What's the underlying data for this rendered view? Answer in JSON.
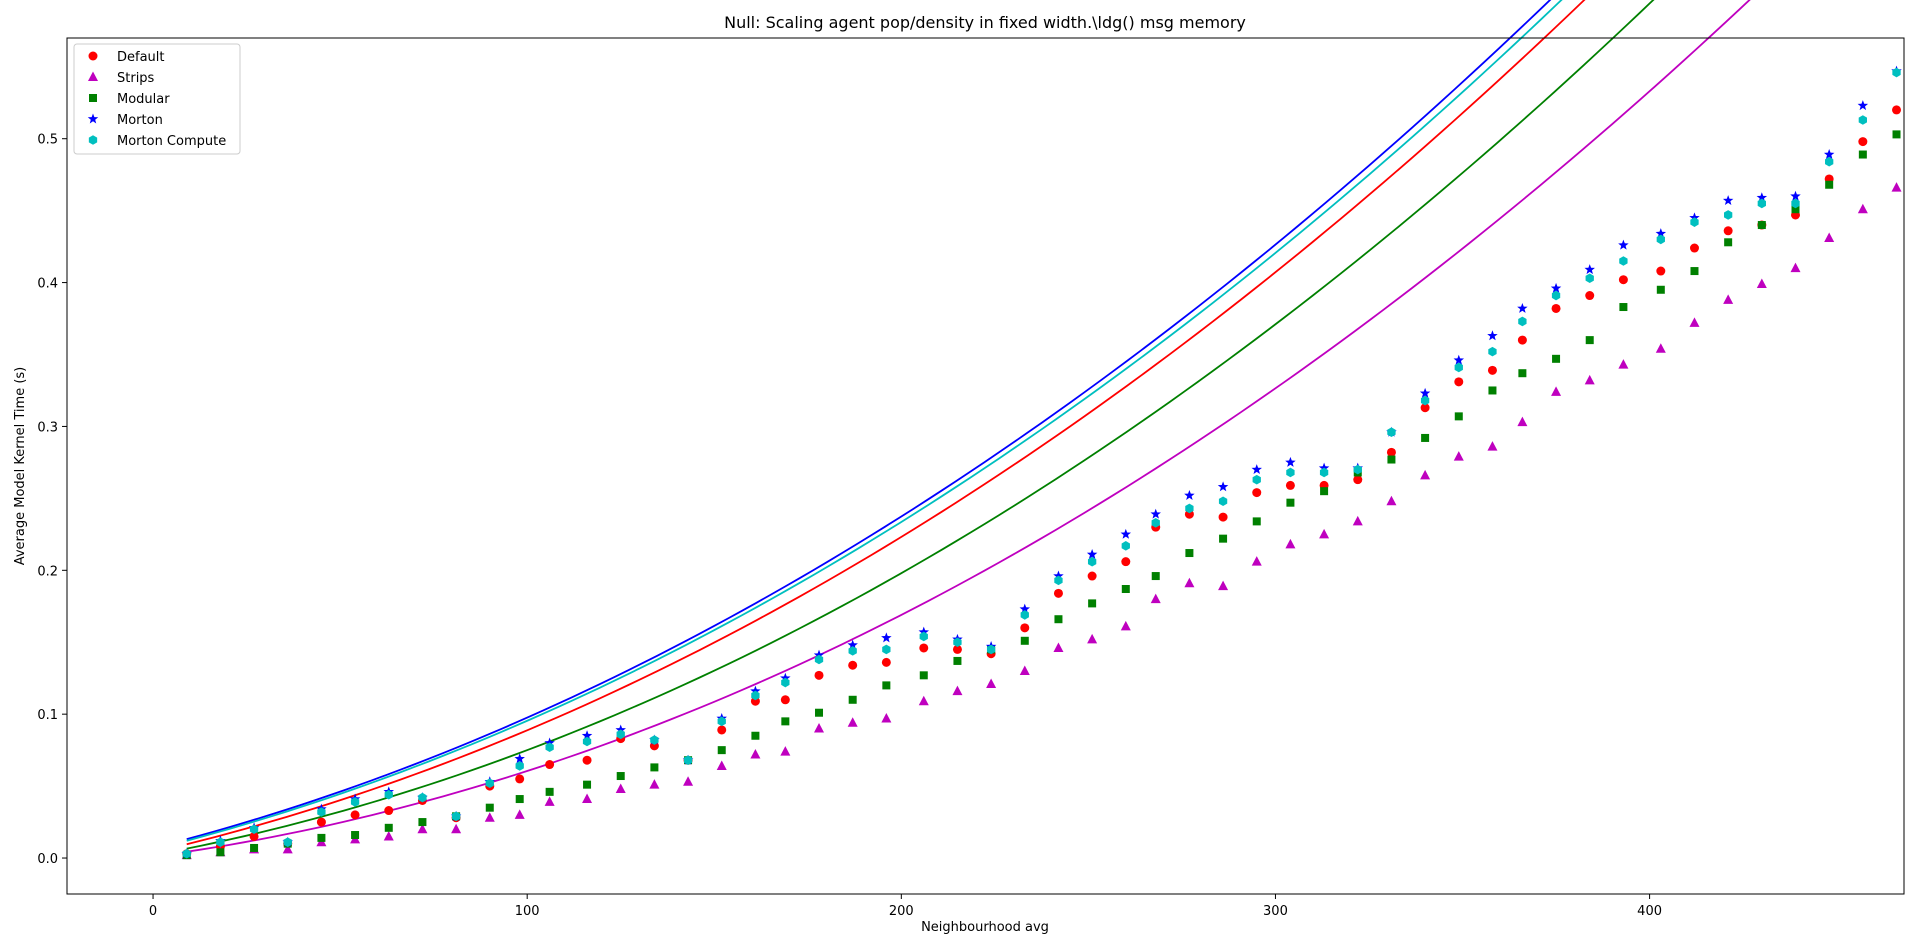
{
  "chart_data": {
    "type": "scatter",
    "title": "Null: Scaling agent pop/density in fixed width.\\ldg() msg memory",
    "xlabel": "Neighbourhood avg",
    "ylabel": "Average Model Kernel Time (s)",
    "xlim": [
      -23,
      468
    ],
    "ylim": [
      -0.025,
      0.57
    ],
    "xticks": [
      0,
      100,
      200,
      300,
      400
    ],
    "yticks": [
      0.0,
      0.1,
      0.2,
      0.3,
      0.4,
      0.5
    ],
    "grid": false,
    "legend_position": "upper-left",
    "x": [
      9,
      18,
      27,
      36,
      45,
      54,
      63,
      72,
      81,
      90,
      98,
      106,
      116,
      125,
      134,
      143,
      152,
      161,
      169,
      178,
      187,
      196,
      206,
      215,
      224,
      233,
      242,
      251,
      260,
      268,
      277,
      286,
      295,
      304,
      313,
      322,
      331,
      340,
      349,
      358,
      366,
      375,
      384,
      393,
      403,
      412,
      421,
      430,
      439,
      448,
      457,
      466
    ],
    "series": [
      {
        "name": "Default",
        "color": "#ff0000",
        "marker": "circle",
        "values": [
          0.003,
          0.008,
          0.015,
          0.01,
          0.025,
          0.03,
          0.033,
          0.04,
          0.028,
          0.05,
          0.055,
          0.065,
          0.068,
          0.083,
          0.078,
          0.068,
          0.089,
          0.109,
          0.11,
          0.127,
          0.134,
          0.136,
          0.146,
          0.145,
          0.142,
          0.16,
          0.184,
          0.196,
          0.206,
          0.23,
          0.239,
          0.237,
          0.254,
          0.259,
          0.259,
          0.263,
          0.282,
          0.313,
          0.331,
          0.339,
          0.36,
          0.382,
          0.391,
          0.402,
          0.408,
          0.424,
          0.436,
          0.44,
          0.447,
          0.472,
          0.498,
          0.52
        ],
        "fit": [
          0.004,
          0.06,
          0.248
        ]
      },
      {
        "name": "Strips",
        "color": "#bf00bf",
        "marker": "triangle",
        "values": [
          0.002,
          0.004,
          0.006,
          0.006,
          0.011,
          0.013,
          0.015,
          0.02,
          0.02,
          0.028,
          0.03,
          0.039,
          0.041,
          0.048,
          0.051,
          0.053,
          0.064,
          0.072,
          0.074,
          0.09,
          0.094,
          0.097,
          0.109,
          0.116,
          0.121,
          0.13,
          0.146,
          0.152,
          0.161,
          0.18,
          0.191,
          0.189,
          0.206,
          0.218,
          0.225,
          0.234,
          0.248,
          0.266,
          0.279,
          0.286,
          0.303,
          0.324,
          0.332,
          0.343,
          0.354,
          0.372,
          0.388,
          0.399,
          0.41,
          0.431,
          0.451,
          0.466
        ],
        "fit": [
          0.001,
          0.035,
          0.245
        ]
      },
      {
        "name": "Modular",
        "color": "#008000",
        "marker": "square",
        "values": [
          0.002,
          0.004,
          0.007,
          0.01,
          0.014,
          0.016,
          0.021,
          0.025,
          0.029,
          0.035,
          0.041,
          0.046,
          0.051,
          0.057,
          0.063,
          0.068,
          0.075,
          0.085,
          0.095,
          0.101,
          0.11,
          0.12,
          0.127,
          0.137,
          0.145,
          0.151,
          0.166,
          0.177,
          0.187,
          0.196,
          0.212,
          0.222,
          0.234,
          0.247,
          0.255,
          0.268,
          0.277,
          0.292,
          0.307,
          0.325,
          0.337,
          0.347,
          0.36,
          0.383,
          0.395,
          0.408,
          0.428,
          0.44,
          0.451,
          0.468,
          0.489,
          0.503
        ],
        "fit": [
          0.002,
          0.048,
          0.25
        ]
      },
      {
        "name": "Morton",
        "color": "#0000ff",
        "marker": "star",
        "values": [
          0.003,
          0.012,
          0.021,
          0.011,
          0.034,
          0.041,
          0.046,
          0.042,
          0.029,
          0.053,
          0.069,
          0.08,
          0.085,
          0.089,
          0.082,
          0.068,
          0.097,
          0.116,
          0.125,
          0.141,
          0.148,
          0.153,
          0.157,
          0.152,
          0.147,
          0.173,
          0.196,
          0.211,
          0.225,
          0.239,
          0.252,
          0.258,
          0.27,
          0.275,
          0.271,
          0.271,
          0.296,
          0.323,
          0.346,
          0.363,
          0.382,
          0.396,
          0.409,
          0.426,
          0.434,
          0.445,
          0.457,
          0.459,
          0.46,
          0.489,
          0.523,
          0.547
        ],
        "fit": [
          0.007,
          0.066,
          0.246
        ]
      },
      {
        "name": "Morton Compute",
        "color": "#00bfbf",
        "marker": "hexagon",
        "values": [
          0.003,
          0.011,
          0.02,
          0.011,
          0.032,
          0.039,
          0.044,
          0.042,
          0.029,
          0.052,
          0.064,
          0.077,
          0.081,
          0.086,
          0.082,
          0.068,
          0.095,
          0.113,
          0.122,
          0.138,
          0.144,
          0.145,
          0.154,
          0.15,
          0.145,
          0.169,
          0.193,
          0.206,
          0.217,
          0.233,
          0.243,
          0.248,
          0.263,
          0.268,
          0.268,
          0.27,
          0.296,
          0.318,
          0.341,
          0.352,
          0.373,
          0.391,
          0.403,
          0.415,
          0.43,
          0.442,
          0.447,
          0.455,
          0.455,
          0.484,
          0.513,
          0.546
        ],
        "fit": [
          0.006,
          0.065,
          0.244
        ]
      }
    ]
  }
}
